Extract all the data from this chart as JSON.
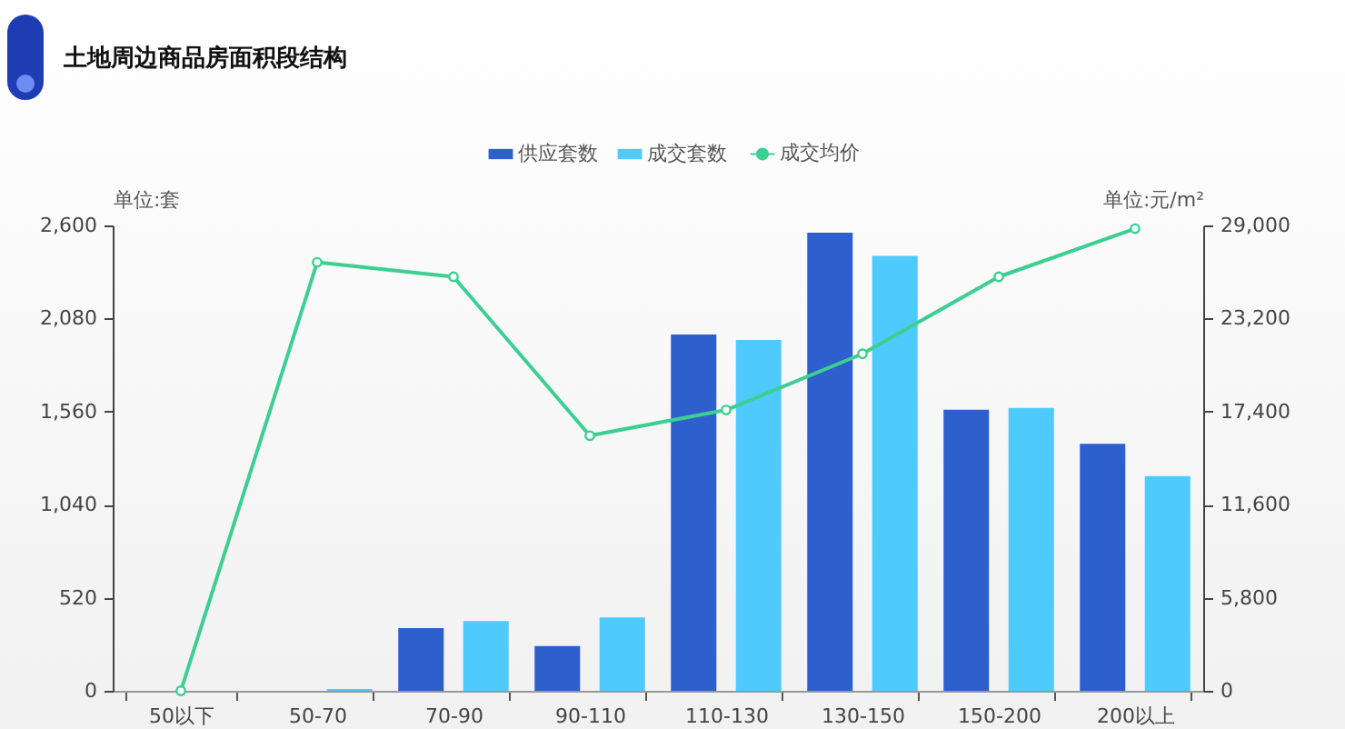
{
  "chart_data": {
    "type": "bar",
    "title": "土地周边商品房面积段结构",
    "categories": [
      "50以下",
      "50-70",
      "70-90",
      "90-110",
      "110-130",
      "130-150",
      "150-200",
      "200以上"
    ],
    "series": [
      {
        "name": "供应套数",
        "color": "#2e60cd",
        "values": [
          0,
          0,
          350,
          250,
          1990,
          2560,
          1570,
          1380
        ]
      },
      {
        "name": "成交套数",
        "color": "#4fcafd",
        "values": [
          0,
          10,
          390,
          410,
          1960,
          2430,
          1580,
          1200
        ]
      },
      {
        "name": "成交均价",
        "type": "line",
        "axis": "y2",
        "color": "#3ccf91",
        "values": [
          0,
          26700,
          25800,
          15900,
          17500,
          21000,
          25800,
          28800
        ]
      }
    ],
    "ylabel": "单位:套",
    "y2label": "单位:元/m²",
    "ylim": [
      0,
      2600
    ],
    "yticks": [
      0,
      {
        "value": 520,
        "label": "520"
      },
      {
        "value": 1040,
        "label": "1,040"
      },
      {
        "value": 1560,
        "label": "1,560"
      },
      {
        "value": 2080,
        "label": "2,080"
      },
      {
        "value": 2600,
        "label": "2,600"
      }
    ],
    "y2lim": [
      0,
      29000
    ],
    "y2ticks": [
      0,
      {
        "value": 5800,
        "label": "5,800"
      },
      {
        "value": 11600,
        "label": "11,600"
      },
      {
        "value": 17400,
        "label": "17,400"
      },
      {
        "value": 23200,
        "label": "23,200"
      },
      {
        "value": 29000,
        "label": "29,000"
      }
    ],
    "legend": "top",
    "marker": "circle",
    "grid": false
  }
}
